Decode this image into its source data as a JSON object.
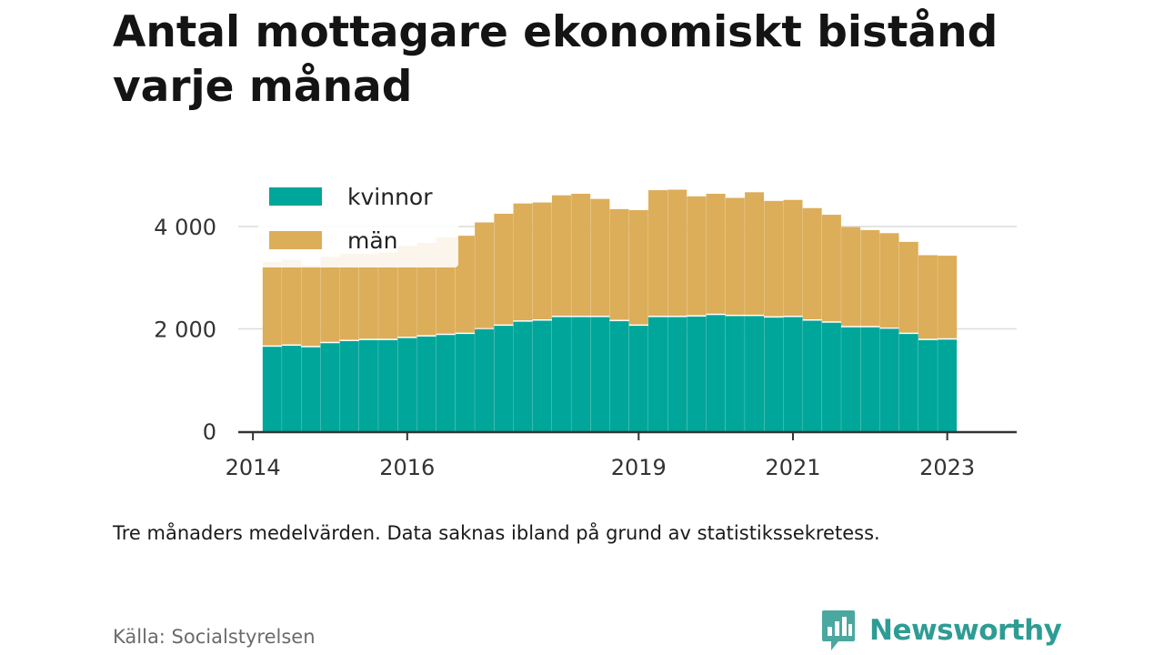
{
  "header": {
    "title": "Antal mottagare ekonomiskt bistånd varje månad"
  },
  "footer": {
    "note": "Tre månaders medelvärden. Data saknas ibland på grund av statistikssekretess.",
    "source": "Källa: Socialstyrelsen",
    "brand": "Newsworthy",
    "brand_icon": "bar-chart-bubble-icon"
  },
  "colors": {
    "kvinnor": "#00a69a",
    "man": "#dcae5a",
    "brand": "#2e9c94"
  },
  "chart_data": {
    "type": "bar",
    "stacked": true,
    "title": "Antal mottagare ekonomiskt bistånd varje månad",
    "xlabel": "",
    "ylabel": "",
    "ylim": [
      0,
      5000
    ],
    "yticks": [
      {
        "value": 0,
        "label": "0"
      },
      {
        "value": 2000,
        "label": "2 000"
      },
      {
        "value": 4000,
        "label": "4 000"
      }
    ],
    "xticks": [
      {
        "value": 2014.0,
        "label": "2014"
      },
      {
        "value": 2016.0,
        "label": "2016"
      },
      {
        "value": 2019.0,
        "label": "2019"
      },
      {
        "value": 2021.0,
        "label": "2021"
      },
      {
        "value": 2023.0,
        "label": "2023"
      }
    ],
    "grid": true,
    "legend_position": "top-left",
    "x": [
      2014.25,
      2014.5,
      2014.75,
      2015.0,
      2015.25,
      2015.5,
      2015.75,
      2016.0,
      2016.25,
      2016.5,
      2016.75,
      2017.0,
      2017.25,
      2017.5,
      2017.75,
      2018.0,
      2018.25,
      2018.5,
      2018.75,
      2019.0,
      2019.25,
      2019.5,
      2019.75,
      2020.0,
      2020.25,
      2020.5,
      2020.75,
      2021.0,
      2021.25,
      2021.5,
      2021.75,
      2022.0,
      2022.25,
      2022.5,
      2022.75,
      2023.0
    ],
    "series": [
      {
        "name": "kvinnor",
        "values": [
          1650,
          1670,
          1640,
          1720,
          1760,
          1780,
          1780,
          1820,
          1850,
          1880,
          1900,
          1990,
          2060,
          2140,
          2160,
          2230,
          2230,
          2230,
          2150,
          2060,
          2230,
          2230,
          2240,
          2270,
          2250,
          2250,
          2220,
          2230,
          2160,
          2120,
          2030,
          2030,
          2000,
          1900,
          1780,
          1790
        ]
      },
      {
        "name": "män",
        "values": [
          1660,
          1680,
          1600,
          1690,
          1710,
          1690,
          1710,
          1800,
          1830,
          1910,
          1920,
          2090,
          2190,
          2310,
          2310,
          2380,
          2410,
          2310,
          2190,
          2260,
          2480,
          2490,
          2350,
          2370,
          2310,
          2420,
          2280,
          2290,
          2200,
          2110,
          1960,
          1900,
          1870,
          1800,
          1660,
          1640
        ]
      }
    ]
  }
}
